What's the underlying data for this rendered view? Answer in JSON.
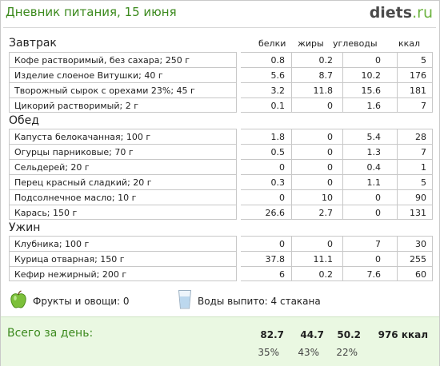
{
  "header": {
    "title": "Дневник питания, 15 июня",
    "logo_main": "diets",
    "logo_tld": ".ru"
  },
  "columns": {
    "protein": "белки",
    "fat": "жиры",
    "carbs": "углеводы",
    "kcal": "ккал"
  },
  "meals": [
    {
      "name": "Завтрак",
      "items": [
        {
          "food": "Кофе растворимый, без сахара; 250 г",
          "protein": "0.8",
          "fat": "0.2",
          "carbs": "0",
          "kcal": "5"
        },
        {
          "food": "Изделие слоеное Витушки; 40 г",
          "protein": "5.6",
          "fat": "8.7",
          "carbs": "10.2",
          "kcal": "176"
        },
        {
          "food": "Творожный сырок с орехами 23%; 45 г",
          "protein": "3.2",
          "fat": "11.8",
          "carbs": "15.6",
          "kcal": "181"
        },
        {
          "food": "Цикорий растворимый; 2 г",
          "protein": "0.1",
          "fat": "0",
          "carbs": "1.6",
          "kcal": "7"
        }
      ]
    },
    {
      "name": "Обед",
      "items": [
        {
          "food": "Капуста белокачанная; 100 г",
          "protein": "1.8",
          "fat": "0",
          "carbs": "5.4",
          "kcal": "28"
        },
        {
          "food": "Огурцы парниковые; 70 г",
          "protein": "0.5",
          "fat": "0",
          "carbs": "1.3",
          "kcal": "7"
        },
        {
          "food": "Сельдерей; 20 г",
          "protein": "0",
          "fat": "0",
          "carbs": "0.4",
          "kcal": "1"
        },
        {
          "food": "Перец красный сладкий; 20 г",
          "protein": "0.3",
          "fat": "0",
          "carbs": "1.1",
          "kcal": "5"
        },
        {
          "food": "Подсолнечное масло; 10 г",
          "protein": "0",
          "fat": "10",
          "carbs": "0",
          "kcal": "90"
        },
        {
          "food": "Карась; 150 г",
          "protein": "26.6",
          "fat": "2.7",
          "carbs": "0",
          "kcal": "131"
        }
      ]
    },
    {
      "name": "Ужин",
      "items": [
        {
          "food": "Клубника; 100 г",
          "protein": "0",
          "fat": "0",
          "carbs": "7",
          "kcal": "30"
        },
        {
          "food": "Курица отварная; 150 г",
          "protein": "37.8",
          "fat": "11.1",
          "carbs": "0",
          "kcal": "255"
        },
        {
          "food": "Кефир нежирный; 200 г",
          "protein": "6",
          "fat": "0.2",
          "carbs": "7.6",
          "kcal": "60"
        }
      ]
    }
  ],
  "extras": {
    "fruits_label": "Фрукты и овощи: 0",
    "water_label": "Воды выпито: 4 стакана",
    "apple_icon": "green-apple-icon",
    "glass_icon": "water-glass-icon"
  },
  "totals": {
    "label": "Всего за день:",
    "protein": "82.7",
    "fat": "44.7",
    "carbs": "50.2",
    "kcal": "976 ккал",
    "protein_pct": "35%",
    "fat_pct": "43%",
    "carbs_pct": "22%"
  },
  "colors": {
    "accent_green": "#3c8a1e",
    "totals_bg": "#eaf8e2"
  }
}
